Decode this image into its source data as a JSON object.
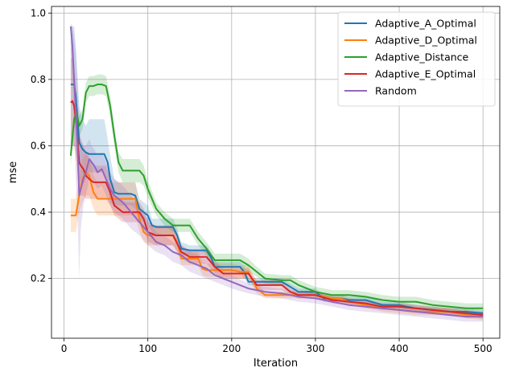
{
  "chart_data": {
    "type": "line",
    "title": "",
    "xlabel": "Iteration",
    "ylabel": "mse",
    "xlim": [
      -15,
      520
    ],
    "ylim": [
      0.02,
      1.02
    ],
    "xticks": [
      0,
      100,
      200,
      300,
      400,
      500
    ],
    "yticks": [
      0.2,
      0.4,
      0.6,
      0.8,
      1.0
    ],
    "grid": true,
    "legend_position": "top-right",
    "series": [
      {
        "name": "Adaptive_A_Optimal",
        "color": "#1f77b4",
        "x": [
          8,
          12,
          14,
          18,
          22,
          26,
          30,
          40,
          48,
          52,
          55,
          60,
          65,
          70,
          80,
          85,
          90,
          95,
          100,
          105,
          110,
          120,
          130,
          135,
          140,
          150,
          170,
          175,
          180,
          210,
          215,
          220,
          230,
          240,
          260,
          270,
          280,
          300,
          310,
          330,
          340,
          360,
          380,
          400,
          420,
          440,
          460,
          480,
          500
        ],
        "y": [
          0.785,
          0.785,
          0.75,
          0.61,
          0.59,
          0.58,
          0.575,
          0.575,
          0.575,
          0.55,
          0.5,
          0.46,
          0.455,
          0.455,
          0.455,
          0.45,
          0.41,
          0.4,
          0.39,
          0.36,
          0.355,
          0.355,
          0.355,
          0.33,
          0.29,
          0.285,
          0.285,
          0.265,
          0.235,
          0.235,
          0.22,
          0.19,
          0.19,
          0.19,
          0.19,
          0.175,
          0.16,
          0.16,
          0.14,
          0.14,
          0.135,
          0.135,
          0.12,
          0.12,
          0.11,
          0.105,
          0.1,
          0.1,
          0.095
        ],
        "lower": [
          0.6,
          0.6,
          0.6,
          0.5,
          0.48,
          0.5,
          0.52,
          0.52,
          0.52,
          0.48,
          0.43,
          0.42,
          0.42,
          0.42,
          0.42,
          0.41,
          0.38,
          0.37,
          0.36,
          0.34,
          0.33,
          0.33,
          0.33,
          0.31,
          0.27,
          0.27,
          0.27,
          0.25,
          0.22,
          0.22,
          0.2,
          0.18,
          0.18,
          0.18,
          0.18,
          0.165,
          0.15,
          0.15,
          0.13,
          0.13,
          0.125,
          0.125,
          0.11,
          0.11,
          0.1,
          0.095,
          0.09,
          0.09,
          0.085
        ],
        "upper": [
          0.96,
          0.96,
          0.9,
          0.72,
          0.68,
          0.66,
          0.68,
          0.68,
          0.68,
          0.62,
          0.57,
          0.5,
          0.49,
          0.49,
          0.49,
          0.49,
          0.44,
          0.43,
          0.42,
          0.38,
          0.38,
          0.38,
          0.38,
          0.35,
          0.31,
          0.3,
          0.3,
          0.28,
          0.25,
          0.25,
          0.24,
          0.2,
          0.2,
          0.2,
          0.2,
          0.185,
          0.17,
          0.17,
          0.15,
          0.15,
          0.145,
          0.145,
          0.13,
          0.13,
          0.12,
          0.115,
          0.11,
          0.11,
          0.105
        ]
      },
      {
        "name": "Adaptive_D_Optimal",
        "color": "#ff7f0e",
        "x": [
          8,
          14,
          18,
          22,
          26,
          30,
          35,
          40,
          48,
          55,
          65,
          80,
          85,
          90,
          95,
          100,
          110,
          130,
          135,
          140,
          150,
          160,
          165,
          170,
          180,
          200,
          210,
          220,
          230,
          240,
          260,
          280,
          300,
          320,
          330,
          340,
          360,
          380,
          400,
          420,
          440,
          460,
          480,
          500
        ],
        "y": [
          0.39,
          0.39,
          0.45,
          0.5,
          0.52,
          0.51,
          0.46,
          0.44,
          0.44,
          0.44,
          0.44,
          0.44,
          0.44,
          0.38,
          0.34,
          0.33,
          0.33,
          0.33,
          0.31,
          0.26,
          0.26,
          0.26,
          0.23,
          0.225,
          0.225,
          0.225,
          0.22,
          0.22,
          0.17,
          0.15,
          0.15,
          0.15,
          0.15,
          0.14,
          0.14,
          0.13,
          0.12,
          0.11,
          0.105,
          0.1,
          0.1,
          0.1,
          0.09,
          0.085
        ],
        "lower": [
          0.34,
          0.34,
          0.4,
          0.43,
          0.45,
          0.45,
          0.41,
          0.39,
          0.39,
          0.39,
          0.39,
          0.39,
          0.39,
          0.34,
          0.31,
          0.3,
          0.3,
          0.3,
          0.28,
          0.24,
          0.24,
          0.24,
          0.21,
          0.205,
          0.205,
          0.205,
          0.2,
          0.2,
          0.155,
          0.14,
          0.14,
          0.14,
          0.14,
          0.13,
          0.13,
          0.12,
          0.11,
          0.1,
          0.095,
          0.09,
          0.09,
          0.09,
          0.08,
          0.075
        ],
        "upper": [
          0.44,
          0.44,
          0.5,
          0.56,
          0.58,
          0.57,
          0.51,
          0.49,
          0.49,
          0.49,
          0.49,
          0.49,
          0.49,
          0.42,
          0.37,
          0.36,
          0.36,
          0.36,
          0.34,
          0.28,
          0.28,
          0.28,
          0.25,
          0.245,
          0.245,
          0.245,
          0.24,
          0.24,
          0.185,
          0.16,
          0.16,
          0.16,
          0.16,
          0.15,
          0.15,
          0.14,
          0.13,
          0.12,
          0.115,
          0.11,
          0.11,
          0.11,
          0.1,
          0.095
        ]
      },
      {
        "name": "Adaptive_Distance",
        "color": "#2ca02c",
        "x": [
          8,
          12,
          15,
          18,
          22,
          26,
          30,
          35,
          40,
          45,
          50,
          55,
          60,
          65,
          70,
          80,
          90,
          95,
          100,
          110,
          120,
          130,
          140,
          150,
          160,
          170,
          180,
          200,
          210,
          220,
          230,
          240,
          260,
          270,
          280,
          290,
          300,
          320,
          340,
          360,
          380,
          400,
          420,
          440,
          460,
          480,
          500
        ],
        "y": [
          0.57,
          0.68,
          0.7,
          0.66,
          0.68,
          0.76,
          0.78,
          0.78,
          0.785,
          0.785,
          0.78,
          0.72,
          0.63,
          0.55,
          0.525,
          0.525,
          0.525,
          0.51,
          0.47,
          0.41,
          0.38,
          0.36,
          0.36,
          0.36,
          0.32,
          0.29,
          0.255,
          0.255,
          0.255,
          0.24,
          0.22,
          0.2,
          0.195,
          0.195,
          0.18,
          0.17,
          0.16,
          0.15,
          0.15,
          0.145,
          0.135,
          0.13,
          0.13,
          0.12,
          0.115,
          0.11,
          0.11
        ],
        "lower": [
          0.54,
          0.65,
          0.67,
          0.63,
          0.65,
          0.73,
          0.75,
          0.75,
          0.755,
          0.755,
          0.75,
          0.69,
          0.6,
          0.52,
          0.49,
          0.49,
          0.49,
          0.48,
          0.445,
          0.39,
          0.36,
          0.34,
          0.34,
          0.34,
          0.3,
          0.27,
          0.235,
          0.235,
          0.235,
          0.22,
          0.205,
          0.185,
          0.18,
          0.18,
          0.165,
          0.155,
          0.145,
          0.135,
          0.135,
          0.13,
          0.12,
          0.115,
          0.115,
          0.105,
          0.1,
          0.095,
          0.095
        ],
        "upper": [
          0.6,
          0.71,
          0.73,
          0.69,
          0.71,
          0.79,
          0.81,
          0.81,
          0.815,
          0.815,
          0.81,
          0.75,
          0.66,
          0.58,
          0.56,
          0.56,
          0.56,
          0.54,
          0.495,
          0.43,
          0.4,
          0.38,
          0.38,
          0.38,
          0.34,
          0.31,
          0.275,
          0.275,
          0.275,
          0.26,
          0.235,
          0.215,
          0.21,
          0.21,
          0.195,
          0.185,
          0.175,
          0.165,
          0.165,
          0.16,
          0.15,
          0.145,
          0.145,
          0.135,
          0.13,
          0.125,
          0.125
        ]
      },
      {
        "name": "Adaptive_E_Optimal",
        "color": "#d62728",
        "x": [
          8,
          10,
          12,
          15,
          18,
          20,
          23,
          26,
          30,
          35,
          40,
          50,
          55,
          60,
          65,
          70,
          80,
          90,
          95,
          100,
          110,
          130,
          140,
          150,
          160,
          170,
          180,
          190,
          200,
          220,
          230,
          240,
          260,
          270,
          280,
          300,
          320,
          340,
          360,
          380,
          400,
          420,
          440,
          460,
          480,
          500
        ],
        "y": [
          0.73,
          0.735,
          0.72,
          0.66,
          0.55,
          0.54,
          0.53,
          0.51,
          0.5,
          0.49,
          0.49,
          0.49,
          0.46,
          0.42,
          0.41,
          0.4,
          0.4,
          0.4,
          0.38,
          0.34,
          0.33,
          0.33,
          0.28,
          0.265,
          0.265,
          0.265,
          0.235,
          0.215,
          0.215,
          0.215,
          0.18,
          0.18,
          0.18,
          0.16,
          0.15,
          0.15,
          0.135,
          0.13,
          0.125,
          0.115,
          0.115,
          0.11,
          0.105,
          0.1,
          0.095,
          0.09
        ],
        "lower": [
          0.6,
          0.6,
          0.6,
          0.55,
          0.46,
          0.45,
          0.45,
          0.44,
          0.44,
          0.44,
          0.44,
          0.44,
          0.42,
          0.39,
          0.38,
          0.37,
          0.37,
          0.37,
          0.35,
          0.31,
          0.3,
          0.3,
          0.26,
          0.245,
          0.245,
          0.245,
          0.215,
          0.2,
          0.2,
          0.2,
          0.165,
          0.165,
          0.165,
          0.15,
          0.14,
          0.14,
          0.125,
          0.12,
          0.115,
          0.105,
          0.105,
          0.1,
          0.095,
          0.09,
          0.085,
          0.08
        ],
        "upper": [
          0.86,
          0.87,
          0.84,
          0.76,
          0.63,
          0.62,
          0.6,
          0.58,
          0.56,
          0.54,
          0.54,
          0.54,
          0.5,
          0.45,
          0.44,
          0.43,
          0.43,
          0.43,
          0.41,
          0.37,
          0.36,
          0.36,
          0.3,
          0.285,
          0.285,
          0.285,
          0.255,
          0.23,
          0.23,
          0.23,
          0.195,
          0.195,
          0.195,
          0.17,
          0.16,
          0.16,
          0.145,
          0.14,
          0.135,
          0.125,
          0.125,
          0.12,
          0.115,
          0.11,
          0.105,
          0.1
        ]
      },
      {
        "name": "Random",
        "color": "#9467bd",
        "x": [
          8,
          10,
          12,
          14,
          16,
          18,
          20,
          23,
          26,
          30,
          33,
          36,
          40,
          45,
          50,
          55,
          60,
          70,
          80,
          90,
          100,
          110,
          120,
          130,
          140,
          150,
          160,
          170,
          180,
          190,
          200,
          220,
          240,
          260,
          280,
          300,
          320,
          340,
          360,
          380,
          400,
          420,
          440,
          460,
          480,
          500
        ],
        "y": [
          0.96,
          0.9,
          0.8,
          0.7,
          0.6,
          0.45,
          0.47,
          0.5,
          0.52,
          0.56,
          0.55,
          0.54,
          0.52,
          0.53,
          0.5,
          0.47,
          0.45,
          0.43,
          0.4,
          0.37,
          0.34,
          0.31,
          0.3,
          0.28,
          0.27,
          0.25,
          0.24,
          0.23,
          0.21,
          0.2,
          0.19,
          0.17,
          0.16,
          0.155,
          0.145,
          0.14,
          0.13,
          0.12,
          0.115,
          0.11,
          0.105,
          0.1,
          0.095,
          0.09,
          0.085,
          0.085
        ],
        "lower": [
          0.9,
          0.8,
          0.65,
          0.5,
          0.4,
          0.2,
          0.35,
          0.42,
          0.45,
          0.5,
          0.5,
          0.49,
          0.47,
          0.48,
          0.45,
          0.42,
          0.4,
          0.38,
          0.35,
          0.33,
          0.3,
          0.28,
          0.27,
          0.25,
          0.24,
          0.22,
          0.21,
          0.2,
          0.19,
          0.18,
          0.17,
          0.155,
          0.145,
          0.14,
          0.13,
          0.125,
          0.115,
          0.105,
          0.1,
          0.095,
          0.09,
          0.085,
          0.08,
          0.075,
          0.07,
          0.07
        ],
        "upper": [
          0.97,
          0.96,
          0.93,
          0.88,
          0.8,
          0.7,
          0.62,
          0.6,
          0.6,
          0.62,
          0.6,
          0.59,
          0.57,
          0.58,
          0.55,
          0.52,
          0.5,
          0.48,
          0.45,
          0.41,
          0.38,
          0.34,
          0.33,
          0.31,
          0.3,
          0.28,
          0.27,
          0.26,
          0.23,
          0.22,
          0.21,
          0.185,
          0.175,
          0.17,
          0.16,
          0.155,
          0.145,
          0.135,
          0.13,
          0.125,
          0.12,
          0.115,
          0.11,
          0.105,
          0.1,
          0.1
        ]
      }
    ]
  }
}
